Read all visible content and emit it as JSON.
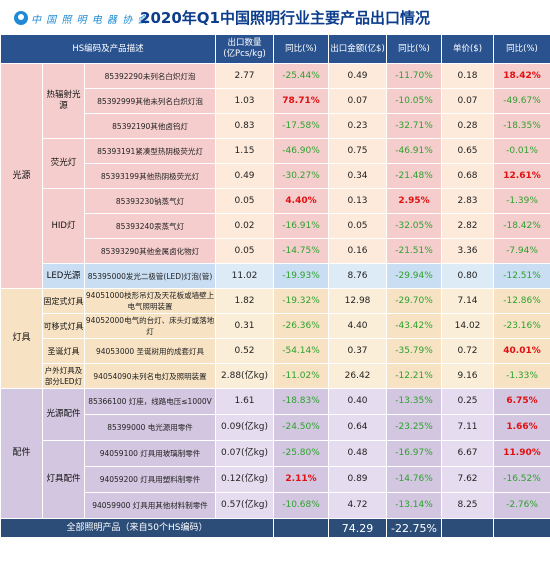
{
  "header": {
    "logo_text": "中 国 照 明 电 器 协 会",
    "title": "2020年Q1中国照明行业主要产品出口情况"
  },
  "table": {
    "headers": [
      "HS编码及产品描述",
      "出口数量\n(亿Pcs/kg)",
      "同比(%)",
      "出口金额(亿$)",
      "同比(%)",
      "单价($)",
      "同比(%)"
    ],
    "categories": [
      "光源",
      "灯具",
      "配件"
    ],
    "subcategories": [
      "热辐射光源",
      "荧光灯",
      "HID灯",
      "LED光源",
      "固定式灯具",
      "可移式灯具",
      "圣诞灯具",
      "户外灯具及部分LED灯",
      "光源配件",
      "灯具配件"
    ],
    "rows": [
      {
        "desc": "85392290未列名白炽灯泡",
        "qty": "2.77",
        "qty_yoy": "-25.44%",
        "amt": "0.49",
        "amt_yoy": "-11.70%",
        "price": "0.18",
        "price_yoy": "18.42%"
      },
      {
        "desc": "85392999其他未列名白炽灯泡",
        "qty": "1.03",
        "qty_yoy": "78.71%",
        "amt": "0.07",
        "amt_yoy": "-10.05%",
        "price": "0.07",
        "price_yoy": "-49.67%"
      },
      {
        "desc": "85392190其他卤钨灯",
        "qty": "0.83",
        "qty_yoy": "-17.58%",
        "amt": "0.23",
        "amt_yoy": "-32.71%",
        "price": "0.28",
        "price_yoy": "-18.35%"
      },
      {
        "desc": "85393191紧凑型热阴极荧光灯",
        "qty": "1.15",
        "qty_yoy": "-46.90%",
        "amt": "0.75",
        "amt_yoy": "-46.91%",
        "price": "0.65",
        "price_yoy": "-0.01%"
      },
      {
        "desc": "85393199其他热阴极荧光灯",
        "qty": "0.49",
        "qty_yoy": "-30.27%",
        "amt": "0.34",
        "amt_yoy": "-21.48%",
        "price": "0.68",
        "price_yoy": "12.61%"
      },
      {
        "desc": "85393230钠蒸气灯",
        "qty": "0.05",
        "qty_yoy": "4.40%",
        "amt": "0.13",
        "amt_yoy": "2.95%",
        "price": "2.83",
        "price_yoy": "-1.39%"
      },
      {
        "desc": "85393240汞蒸气灯",
        "qty": "0.02",
        "qty_yoy": "-16.91%",
        "amt": "0.05",
        "amt_yoy": "-32.05%",
        "price": "2.82",
        "price_yoy": "-18.42%"
      },
      {
        "desc": "85393290其他金属卤化物灯",
        "qty": "0.05",
        "qty_yoy": "-14.75%",
        "amt": "0.16",
        "amt_yoy": "-21.51%",
        "price": "3.36",
        "price_yoy": "-7.94%"
      },
      {
        "desc": "85395000发光二极管(LED)灯泡(管)",
        "qty": "11.02",
        "qty_yoy": "-19.93%",
        "amt": "8.76",
        "amt_yoy": "-29.94%",
        "price": "0.80",
        "price_yoy": "-12.51%"
      },
      {
        "desc": "94051000枝形吊灯及天花板或墙壁上电气照明装置",
        "qty": "1.82",
        "qty_yoy": "-19.32%",
        "amt": "12.98",
        "amt_yoy": "-29.70%",
        "price": "7.14",
        "price_yoy": "-12.86%"
      },
      {
        "desc": "94052000电气的台灯、床头灯或落地灯",
        "qty": "0.31",
        "qty_yoy": "-26.36%",
        "amt": "4.40",
        "amt_yoy": "-43.42%",
        "price": "14.02",
        "price_yoy": "-23.16%"
      },
      {
        "desc": "94053000 圣诞树用的成套灯具",
        "qty": "0.52",
        "qty_yoy": "-54.14%",
        "amt": "0.37",
        "amt_yoy": "-35.79%",
        "price": "0.72",
        "price_yoy": "40.01%"
      },
      {
        "desc": "94054090未列名电灯及照明装置",
        "qty": "2.88(亿kg)",
        "qty_yoy": "-11.02%",
        "amt": "26.42",
        "amt_yoy": "-12.21%",
        "price": "9.16",
        "price_yoy": "-1.33%"
      },
      {
        "desc": "85366100 灯座，线路电压≤1000V",
        "qty": "1.61",
        "qty_yoy": "-18.83%",
        "amt": "0.40",
        "amt_yoy": "-13.35%",
        "price": "0.25",
        "price_yoy": "6.75%"
      },
      {
        "desc": "85399000 电光源用零件",
        "qty": "0.09(亿kg)",
        "qty_yoy": "-24.50%",
        "amt": "0.64",
        "amt_yoy": "-23.25%",
        "price": "7.11",
        "price_yoy": "1.66%"
      },
      {
        "desc": "94059100 灯具用玻璃制零件",
        "qty": "0.07(亿kg)",
        "qty_yoy": "-25.80%",
        "amt": "0.48",
        "amt_yoy": "-16.97%",
        "price": "6.67",
        "price_yoy": "11.90%"
      },
      {
        "desc": "94059200 灯具用塑料制零件",
        "qty": "0.12(亿kg)",
        "qty_yoy": "2.11%",
        "amt": "0.89",
        "amt_yoy": "-14.76%",
        "price": "7.62",
        "price_yoy": "-16.52%"
      },
      {
        "desc": "94059900 灯具用其他材料制零件",
        "qty": "0.57(亿kg)",
        "qty_yoy": "-10.68%",
        "amt": "4.72",
        "amt_yoy": "-13.14%",
        "price": "8.25",
        "price_yoy": "-2.76%"
      }
    ],
    "total": {
      "label": "全部照明产品（来自50个HS编码）",
      "amt": "74.29",
      "amt_yoy": "-22.75%"
    }
  },
  "colors": {
    "header_blue": "#29528e",
    "title_blue": "#0c3c8c",
    "positive_red": "#e01010",
    "negative_green": "#2ea12e",
    "summary_bg": "#2b4d78"
  }
}
